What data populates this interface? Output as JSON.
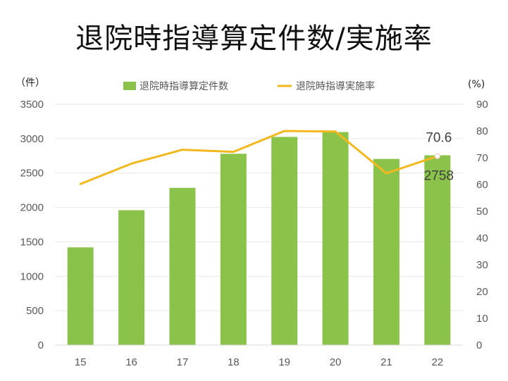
{
  "title": "退院時指導算定件数/実施率",
  "chart_data": {
    "type": "bar+line",
    "categories": [
      "15",
      "16",
      "17",
      "18",
      "19",
      "20",
      "21",
      "22"
    ],
    "series": [
      {
        "name": "退院時指導算定件数",
        "type": "bar",
        "axis": "left",
        "values": [
          1420,
          1960,
          2285,
          2780,
          3025,
          3095,
          2705,
          2758
        ],
        "color": "#8BC34A"
      },
      {
        "name": "退院時指導実施率",
        "type": "line",
        "axis": "right",
        "values": [
          60.2,
          67.8,
          73.0,
          72.2,
          80.0,
          79.8,
          64.2,
          70.6
        ],
        "color": "#F2B81E"
      }
    ],
    "y_left": {
      "unit_label": "（件）",
      "ylim": [
        0,
        3500
      ],
      "ticks": [
        "0",
        "500",
        "1000",
        "1500",
        "2000",
        "2500",
        "3000",
        "3500"
      ]
    },
    "y_right": {
      "unit_label": "(%)",
      "ylim": [
        0,
        90
      ],
      "ticks": [
        "0",
        "10",
        "20",
        "30",
        "40",
        "50",
        "60",
        "70",
        "80",
        "90"
      ]
    },
    "data_labels": [
      {
        "series": "退院時指導実施率",
        "category": "22",
        "text": "70.6"
      },
      {
        "series": "退院時指導算定件数",
        "category": "22",
        "text": "2758"
      }
    ],
    "legend_position": "top",
    "grid": true,
    "grid_color": "#E6E6E6"
  }
}
